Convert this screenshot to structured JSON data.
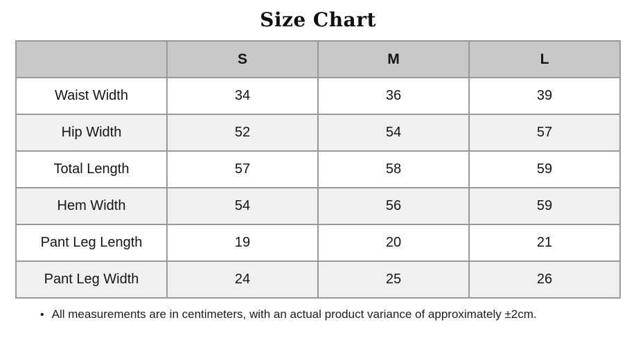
{
  "page": {
    "title": "Size Chart"
  },
  "chart_data": {
    "type": "table",
    "title": "Size Chart",
    "columns": [
      "",
      "S",
      "M",
      "L"
    ],
    "rows": [
      {
        "label": "Waist Width",
        "values": [
          "34",
          "36",
          "39"
        ]
      },
      {
        "label": "Hip Width",
        "values": [
          "52",
          "54",
          "57"
        ]
      },
      {
        "label": "Total Length",
        "values": [
          "57",
          "58",
          "59"
        ]
      },
      {
        "label": "Hem Width",
        "values": [
          "54",
          "56",
          "59"
        ]
      },
      {
        "label": "Pant Leg Length",
        "values": [
          "19",
          "20",
          "21"
        ]
      },
      {
        "label": "Pant Leg Width",
        "values": [
          "24",
          "25",
          "26"
        ]
      }
    ],
    "units": "centimeters"
  },
  "footnote": {
    "bullet": "•",
    "text": "All measurements are in centimeters, with an actual product variance of approximately ±2cm."
  },
  "colors": {
    "header_bg": "#c8c8c8",
    "alt_row_bg": "#f0f0f0",
    "border": "#999999",
    "text": "#141414"
  }
}
